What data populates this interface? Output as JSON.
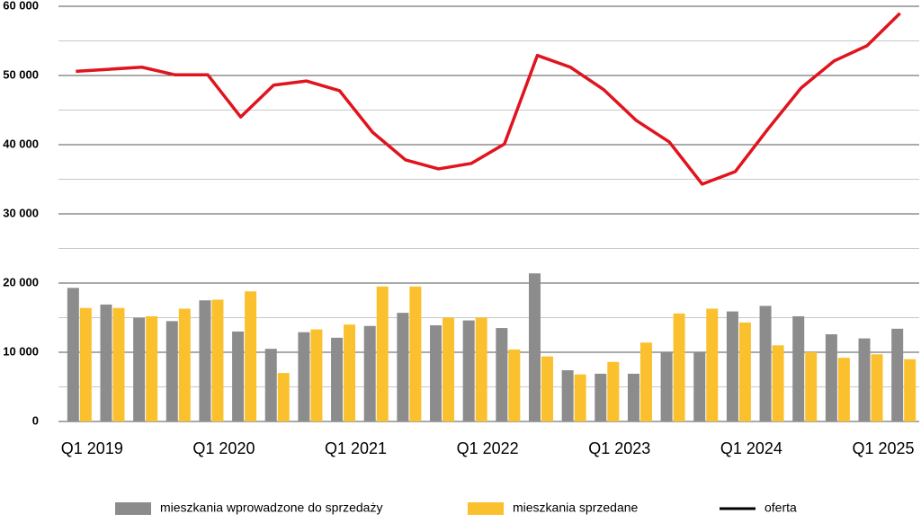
{
  "chart_data": {
    "type": "bar-line",
    "categories": [
      "Q1 2019",
      null,
      null,
      null,
      "Q1 2020",
      null,
      null,
      null,
      "Q1 2021",
      null,
      null,
      null,
      "Q1 2022",
      null,
      null,
      null,
      "Q1 2023",
      null,
      null,
      null,
      "Q1 2024",
      null,
      null,
      null,
      "Q1 2025",
      null
    ],
    "series": [
      {
        "name": "mieszkania wprowadzone do sprzedaży",
        "type": "bar",
        "color": "#8c8c8c",
        "values": [
          19300,
          16900,
          15000,
          14500,
          17500,
          13000,
          10500,
          12900,
          12100,
          13800,
          15700,
          13900,
          14600,
          13500,
          21400,
          7400,
          6900,
          6900,
          10100,
          10100,
          15900,
          16700,
          15200,
          12600,
          12000,
          13400
        ]
      },
      {
        "name": "mieszkania sprzedane",
        "type": "bar",
        "color": "#fbc02d",
        "values": [
          16400,
          16400,
          15200,
          16300,
          17600,
          18800,
          7000,
          13300,
          14000,
          19500,
          19500,
          15000,
          15000,
          10400,
          9400,
          6800,
          8600,
          11400,
          15600,
          16300,
          14300,
          11000,
          10000,
          9200,
          9700,
          9000
        ]
      },
      {
        "name": "oferta",
        "type": "line",
        "color": "#e0141e",
        "legend_color": "#000000",
        "values": [
          50600,
          50900,
          51200,
          50100,
          50100,
          44000,
          48600,
          49200,
          47800,
          41800,
          37800,
          36500,
          37300,
          40100,
          52900,
          51200,
          48000,
          43500,
          40400,
          34300,
          36100,
          42300,
          48200,
          52100,
          54300,
          59000
        ]
      }
    ],
    "ylim": [
      0,
      60000
    ],
    "yticks": [
      0,
      {
        "value": 10000,
        "label": "10 000"
      },
      {
        "value": 20000,
        "label": "20 000"
      },
      {
        "value": 30000,
        "label": "30 000"
      },
      {
        "value": 40000,
        "label": "40 000"
      },
      {
        "value": 50000,
        "label": "50 000"
      },
      {
        "value": 60000,
        "label": "60 000"
      }
    ],
    "minor_gridlines": [
      5000,
      15000,
      25000,
      35000,
      45000,
      55000
    ],
    "grid": true
  }
}
